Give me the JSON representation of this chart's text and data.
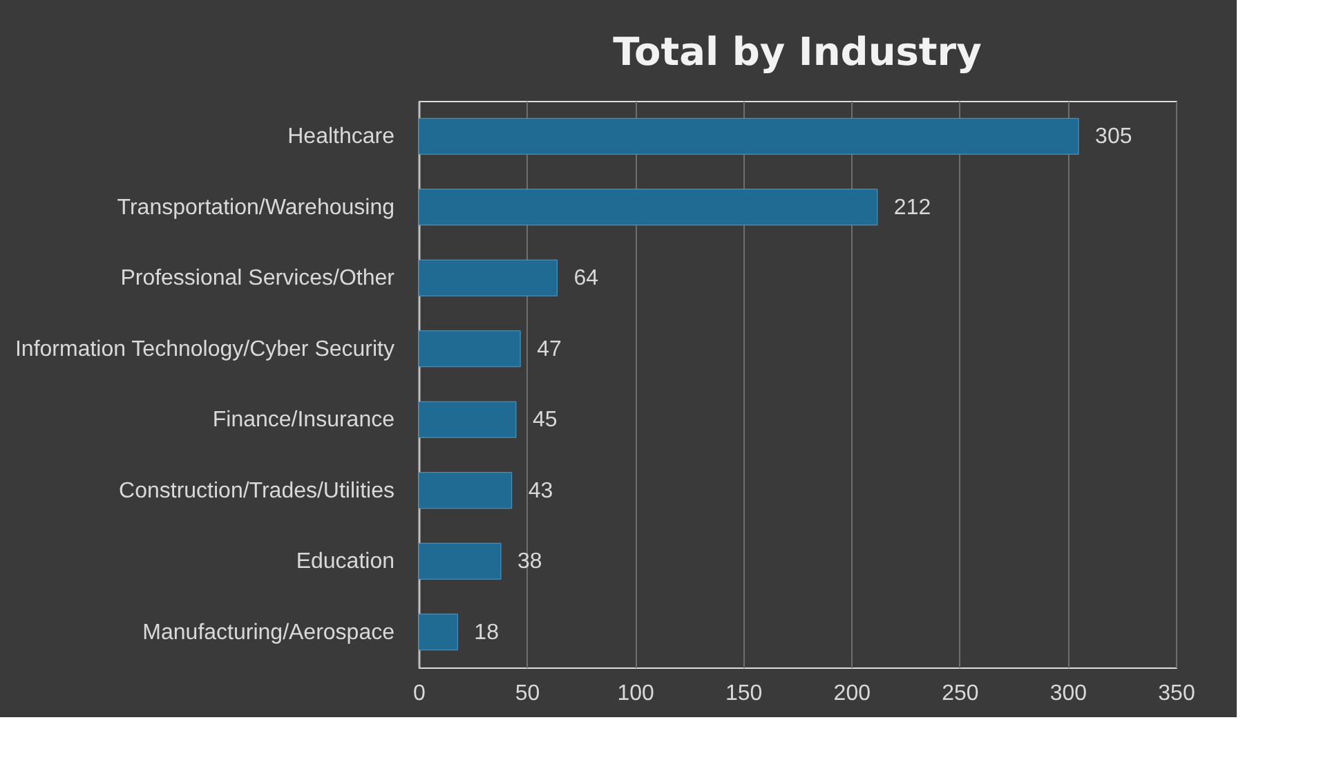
{
  "chart_data": {
    "type": "bar",
    "orientation": "horizontal",
    "title": "Total by Industry",
    "categories": [
      "Healthcare",
      "Transportation/Warehousing",
      "Professional Services/Other",
      "Information Technology/Cyber Security",
      "Finance/Insurance",
      "Construction/Trades/Utilities",
      "Education",
      "Manufacturing/Aerospace"
    ],
    "values": [
      305,
      212,
      64,
      47,
      45,
      43,
      38,
      18
    ],
    "color": "#1f6b94",
    "xlim": [
      0,
      350
    ],
    "xticks": [
      0,
      50,
      100,
      150,
      200,
      250,
      300,
      350
    ],
    "grid": "x",
    "data_labels": true
  }
}
